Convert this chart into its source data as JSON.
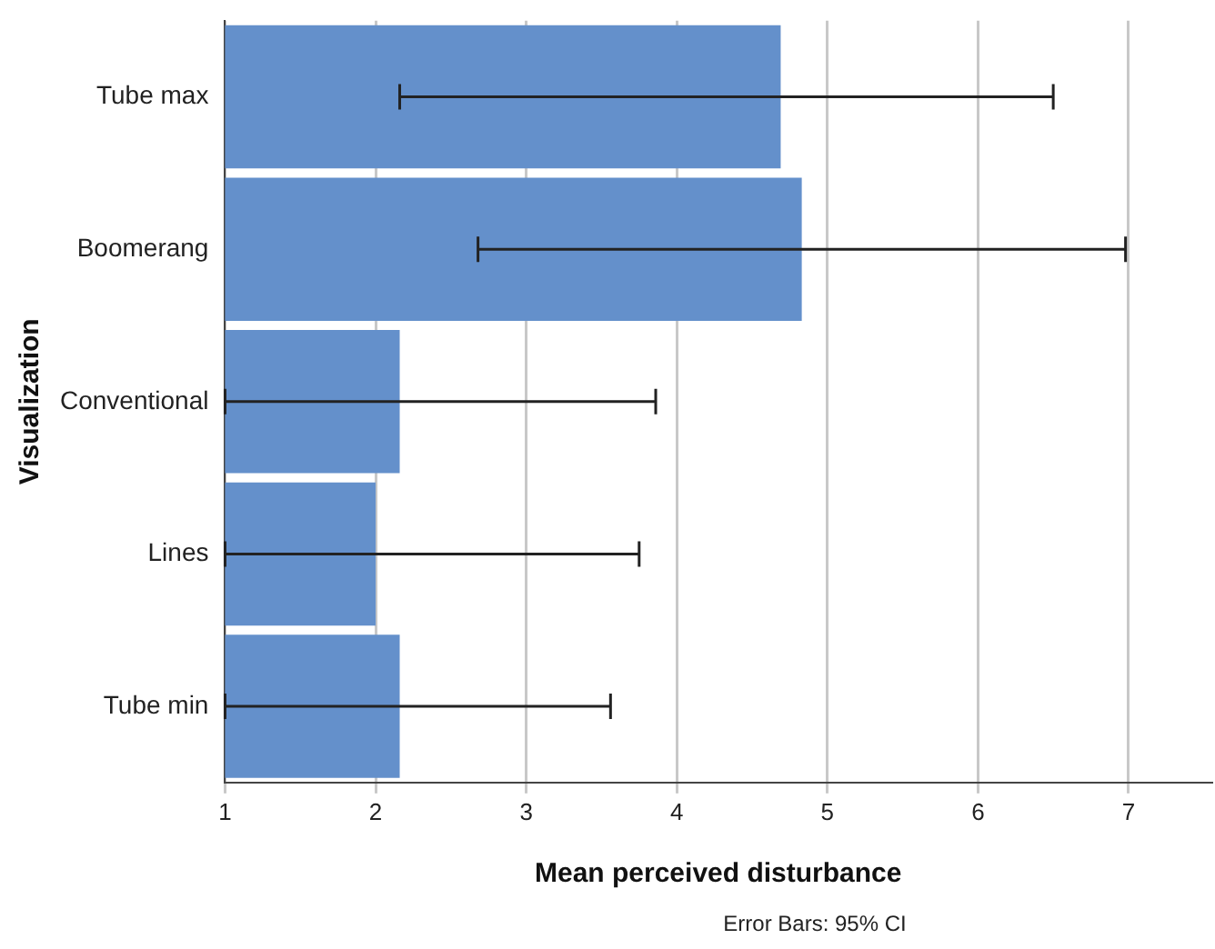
{
  "chart_data": {
    "type": "bar",
    "orientation": "horizontal",
    "xlabel": "Mean perceived disturbance",
    "ylabel": "Visualization",
    "categories": [
      "Tube max",
      "Boomerang",
      "Conventional",
      "Lines",
      "Tube min"
    ],
    "values": [
      4.69,
      4.83,
      2.16,
      2.0,
      2.16
    ],
    "errors": [
      [
        2.16,
        6.5
      ],
      [
        2.68,
        6.98
      ],
      [
        1.0,
        3.86
      ],
      [
        1.0,
        3.75
      ],
      [
        1.0,
        3.56
      ]
    ],
    "color": "#6490cb",
    "xlim": [
      1,
      7.55
    ],
    "xticks": [
      1,
      2,
      3,
      4,
      5,
      6,
      7
    ],
    "grid": "x",
    "annotations": [
      "Error Bars: 95% CI"
    ]
  }
}
